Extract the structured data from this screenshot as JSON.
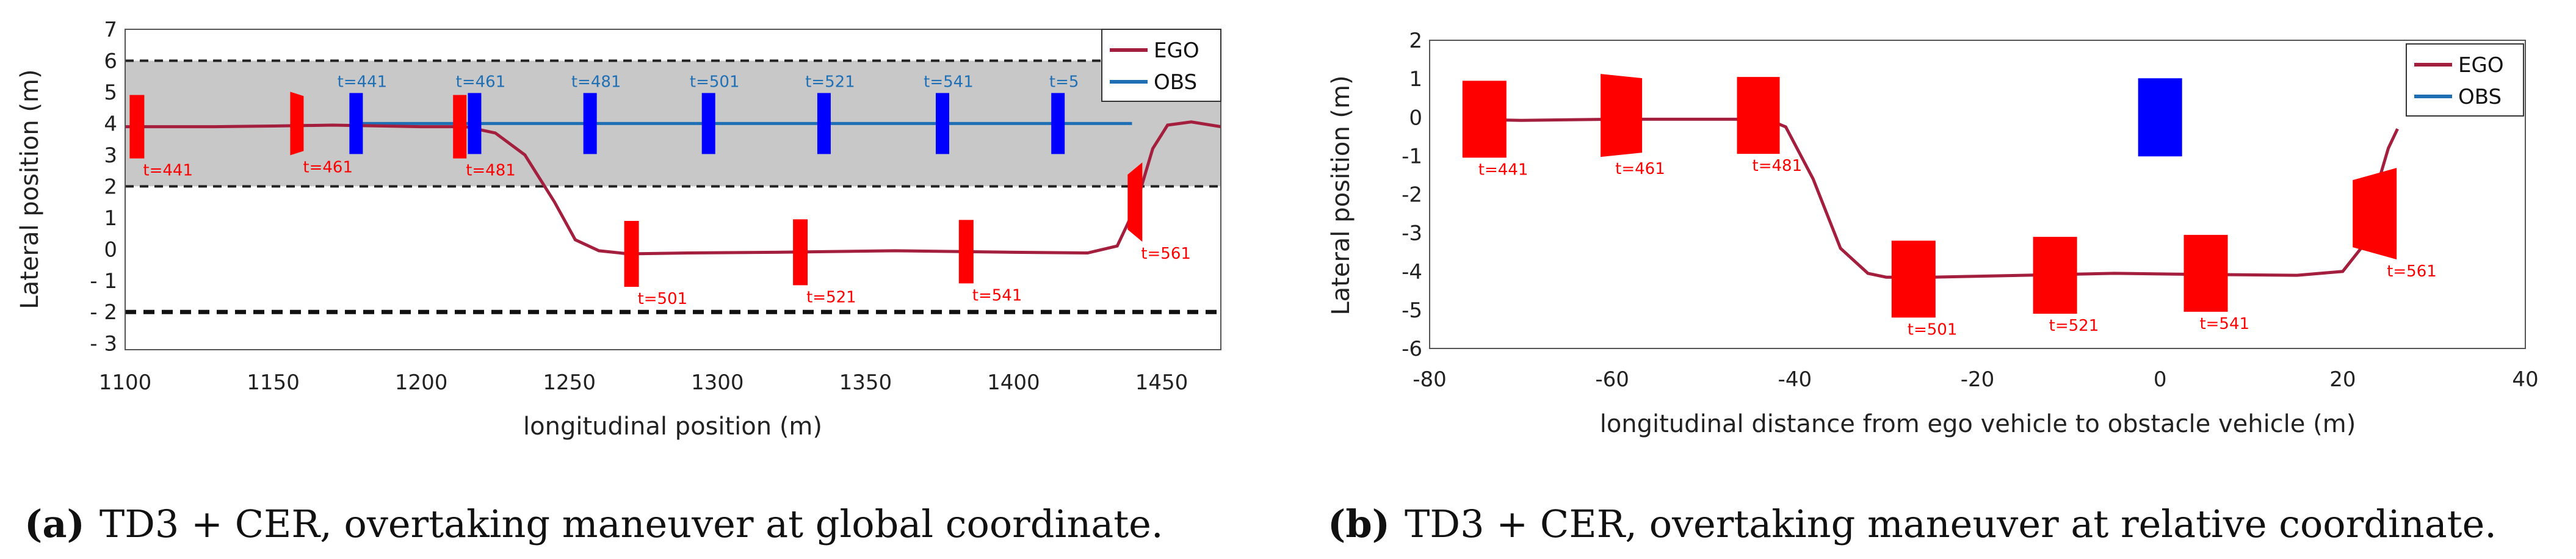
{
  "chart_data": [
    {
      "type": "line",
      "panel": "a",
      "xlabel": "longitudinal position (m)",
      "ylabel": "Lateral position (m)",
      "xlim": [
        1100,
        1470
      ],
      "ylim": [
        -3.2,
        7
      ],
      "xticks": [
        "1100",
        "1150",
        "1200",
        "1250",
        "1300",
        "1350",
        "1400",
        "1450"
      ],
      "xtick_values": [
        1100,
        1150,
        1200,
        1250,
        1300,
        1350,
        1400,
        1450
      ],
      "yticks": [
        "7",
        "6",
        "5",
        "4",
        "3",
        "2",
        "1",
        "0",
        "- 1",
        "- 2",
        "- 3"
      ],
      "ytick_values": [
        7,
        6,
        5,
        4,
        3,
        2,
        1,
        0,
        -1,
        -2,
        -3
      ],
      "shaded_band": [
        2,
        6
      ],
      "dashed_lines": [
        6,
        2,
        -2
      ],
      "legend": [
        "EGO",
        "OBS"
      ],
      "series": [
        {
          "name": "EGO",
          "color": "#a31f3d",
          "x": [
            1100,
            1130,
            1150,
            1170,
            1200,
            1215,
            1225,
            1235,
            1245,
            1252,
            1260,
            1270,
            1290,
            1320,
            1360,
            1400,
            1425,
            1435,
            1441,
            1447,
            1452,
            1460,
            1470
          ],
          "y": [
            3.9,
            3.9,
            3.92,
            3.95,
            3.9,
            3.9,
            3.7,
            3.0,
            1.5,
            0.3,
            -0.05,
            -0.15,
            -0.12,
            -0.1,
            -0.05,
            -0.1,
            -0.12,
            0.1,
            1.3,
            3.2,
            3.95,
            4.05,
            3.9
          ]
        },
        {
          "name": "OBS",
          "color": "#1f6fb5",
          "x": [
            1178,
            1440
          ],
          "y": [
            4.0,
            4.0
          ]
        }
      ],
      "ego_boxes": [
        {
          "t": "t=441",
          "x": 1104,
          "y": 3.9
        },
        {
          "t": "t=461",
          "x": 1158,
          "y": 4.0
        },
        {
          "t": "t=481",
          "x": 1213,
          "y": 3.9
        },
        {
          "t": "t=501",
          "x": 1271,
          "y": -0.15
        },
        {
          "t": "t=521",
          "x": 1328,
          "y": -0.1
        },
        {
          "t": "t=541",
          "x": 1384,
          "y": -0.08
        },
        {
          "t": "t=561",
          "x": 1441,
          "y": 1.5
        }
      ],
      "obs_boxes": [
        {
          "t": "t=441",
          "x": 1178,
          "y": 4.0
        },
        {
          "t": "t=461",
          "x": 1218,
          "y": 4.0
        },
        {
          "t": "t=481",
          "x": 1257,
          "y": 4.0
        },
        {
          "t": "t=501",
          "x": 1297,
          "y": 4.0
        },
        {
          "t": "t=521",
          "x": 1336,
          "y": 4.0
        },
        {
          "t": "t=541",
          "x": 1376,
          "y": 4.0
        },
        {
          "t": "t=5",
          "x": 1415,
          "y": 4.0
        }
      ],
      "caption_label": "(a)",
      "caption_text": "TD3 + CER, overtaking maneuver at global coordinate."
    },
    {
      "type": "line",
      "panel": "b",
      "xlabel": "longitudinal distance from ego vehicle to obstacle vehicle (m)",
      "ylabel": "Lateral position (m)",
      "xlim": [
        -80,
        40
      ],
      "ylim": [
        -6,
        2
      ],
      "xticks": [
        "-80",
        "-60",
        "-40",
        "-20",
        "0",
        "20",
        "40"
      ],
      "xtick_values": [
        -80,
        -60,
        -40,
        -20,
        0,
        20,
        40
      ],
      "yticks": [
        "2",
        "1",
        "0",
        "-1",
        "-2",
        "-3",
        "-4",
        "-5",
        "-6"
      ],
      "ytick_values": [
        2,
        1,
        0,
        -1,
        -2,
        -3,
        -4,
        -5,
        -6
      ],
      "legend": [
        "EGO",
        "OBS"
      ],
      "series": [
        {
          "name": "EGO",
          "color": "#a31f3d",
          "x": [
            -76,
            -70,
            -60,
            -50,
            -43,
            -41,
            -38,
            -35,
            -32,
            -30,
            -25,
            -15,
            -5,
            5,
            15,
            20,
            22,
            23.5,
            25,
            26
          ],
          "y": [
            -0.05,
            -0.08,
            -0.05,
            -0.05,
            -0.05,
            -0.25,
            -1.6,
            -3.4,
            -4.05,
            -4.15,
            -4.15,
            -4.1,
            -4.05,
            -4.08,
            -4.1,
            -4.0,
            -3.4,
            -2.0,
            -0.8,
            -0.3
          ]
        }
      ],
      "ego_boxes": [
        {
          "t": "t=441",
          "x": -74,
          "y": -0.05
        },
        {
          "t": "t=461",
          "x": -59,
          "y": 0.05
        },
        {
          "t": "t=481",
          "x": -44,
          "y": 0.05
        },
        {
          "t": "t=501",
          "x": -27,
          "y": -4.2
        },
        {
          "t": "t=521",
          "x": -11.5,
          "y": -4.1
        },
        {
          "t": "t=541",
          "x": 5,
          "y": -4.05
        },
        {
          "t": "t=561",
          "x": 23.5,
          "y": -2.5
        }
      ],
      "obs_box": {
        "x": 0,
        "y": 0
      },
      "caption_label": "(b)",
      "caption_text": "TD3 + CER, overtaking maneuver at relative coordinate."
    }
  ]
}
